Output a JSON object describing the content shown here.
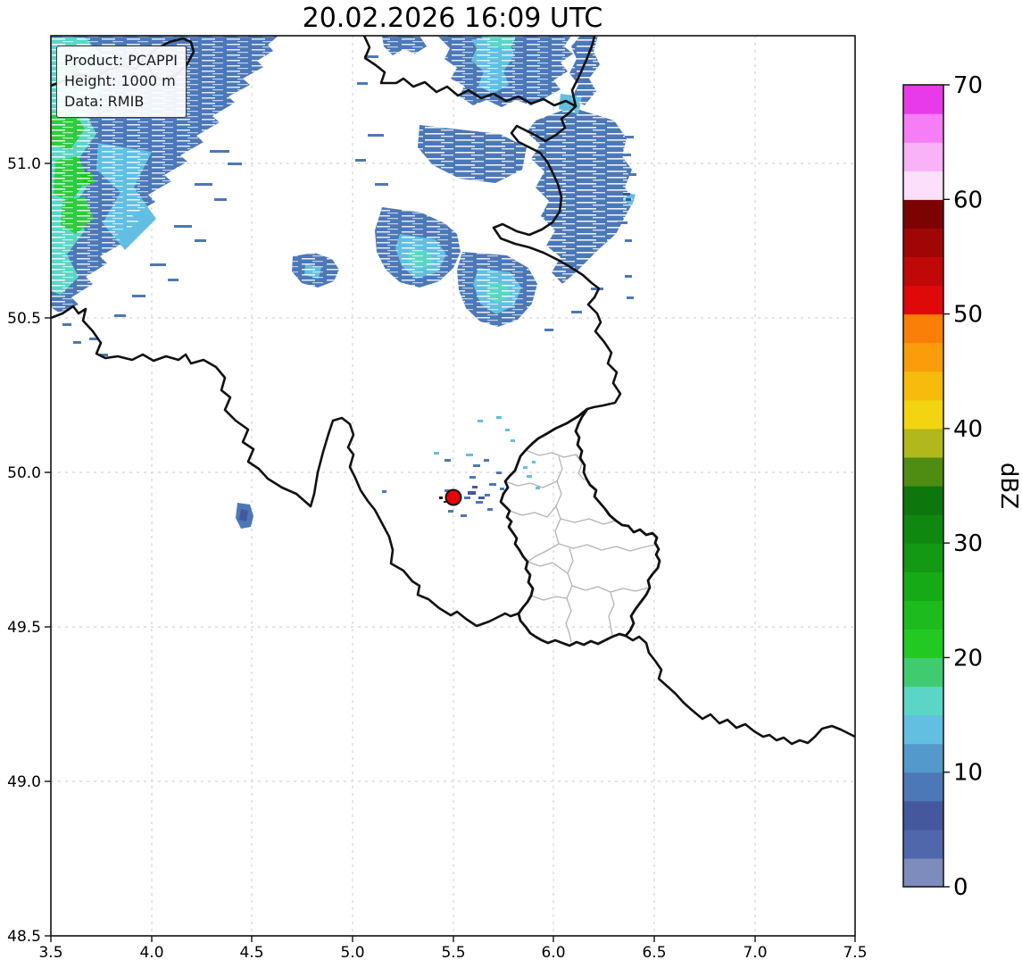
{
  "title": "20.02.2026 16:09 UTC",
  "info_box": {
    "lines": [
      "Product: PCAPPI",
      "Height: 1000 m",
      "Data: RMIB"
    ]
  },
  "axes": {
    "x_tick_labels": [
      "3.5",
      "4.0",
      "4.5",
      "5.0",
      "5.5",
      "6.0",
      "6.5",
      "7.0",
      "7.5"
    ],
    "y_tick_labels": [
      "51.0",
      "50.5",
      "50.0",
      "49.5",
      "49.0",
      "48.5"
    ]
  },
  "colorbar": {
    "label": "dBZ",
    "tick_labels": [
      "0",
      "10",
      "20",
      "30",
      "40",
      "50",
      "60",
      "70"
    ],
    "min_dbz": 0,
    "max_dbz": 70,
    "segment_step_dbz": 2.5,
    "segment_colors_bottom_to_top": [
      "#7d8cbc",
      "#5067ac",
      "#45579d",
      "#4c78b7",
      "#5499cb",
      "#62bfe2",
      "#5bd6c6",
      "#41cb70",
      "#22c922",
      "#1dbb1d",
      "#17aa17",
      "#139913",
      "#108810",
      "#0d760d",
      "#4e8c12",
      "#b0b81c",
      "#f2d410",
      "#f7bb0d",
      "#f99e0a",
      "#f97f08",
      "#e00909",
      "#c10808",
      "#a00606",
      "#7d0303",
      "#fcdffb",
      "#f9b1f7",
      "#f67df5",
      "#e83ae8"
    ]
  },
  "palette": {
    "echo_blue": "#4c78b7",
    "echo_navy": "#45579d",
    "echo_cyan": "#62bfe2",
    "echo_turquoise": "#5bd6c6",
    "echo_green": "#2eca40",
    "echo_green_bright": "#1dc91d",
    "marker_red": "#e8000b",
    "border_black": "#111111",
    "district_gray": "#b3b3b3",
    "grid_gray": "#c9c9c9"
  },
  "map": {
    "radar_site": {
      "lon": 5.5,
      "lat": 49.92
    }
  },
  "chart_data": {
    "type": "heatmap",
    "title": "20.02.2026 16:09 UTC",
    "product": "PCAPPI",
    "height_m": 1000,
    "source": "RMIB",
    "colorbar_label": "dBZ",
    "xlim": [
      3.5,
      7.5
    ],
    "ylim": [
      48.5,
      51.41
    ],
    "x_ticks": [
      3.5,
      4.0,
      4.5,
      5.0,
      5.5,
      6.0,
      6.5,
      7.0,
      7.5
    ],
    "y_ticks": [
      48.5,
      49.0,
      49.5,
      50.0,
      50.5,
      51.0
    ],
    "colorbar_ticks": [
      0,
      10,
      20,
      30,
      40,
      50,
      60,
      70
    ],
    "grid": "dashed",
    "legend_position": "right-colorbar",
    "radar_site_marker": {
      "lon": 5.5,
      "lat": 49.92
    },
    "echo_regions": [
      {
        "name": "northwest-band",
        "lon_range": [
          3.5,
          4.63
        ],
        "lat_range": [
          50.53,
          51.41
        ],
        "peak_dbz": 25,
        "typical_dbz": "0-17.5",
        "texture": "streaky, cyan and green cores along west edge"
      },
      {
        "name": "north-central-cluster",
        "lon_range": [
          5.1,
          6.4
        ],
        "lat_range": [
          50.45,
          51.41
        ],
        "peak_dbz": 17.5,
        "typical_dbz": "0-15",
        "texture": "streaky blue with cyan cores"
      },
      {
        "name": "isolated-cell-west",
        "lon_range": [
          4.7,
          4.95
        ],
        "lat_range": [
          50.55,
          50.67
        ],
        "peak_dbz": 15,
        "typical_dbz": "0-12.5"
      },
      {
        "name": "scattered-specks-near-radar",
        "lon_range": [
          5.3,
          6.05
        ],
        "lat_range": [
          49.82,
          50.22
        ],
        "peak_dbz": 12.5,
        "typical_dbz": "0-10"
      },
      {
        "name": "small-spot-southwest",
        "lon_range": [
          4.43,
          4.51
        ],
        "lat_range": [
          49.82,
          49.9
        ],
        "peak_dbz": 7.5,
        "typical_dbz": "0-7.5"
      }
    ]
  }
}
